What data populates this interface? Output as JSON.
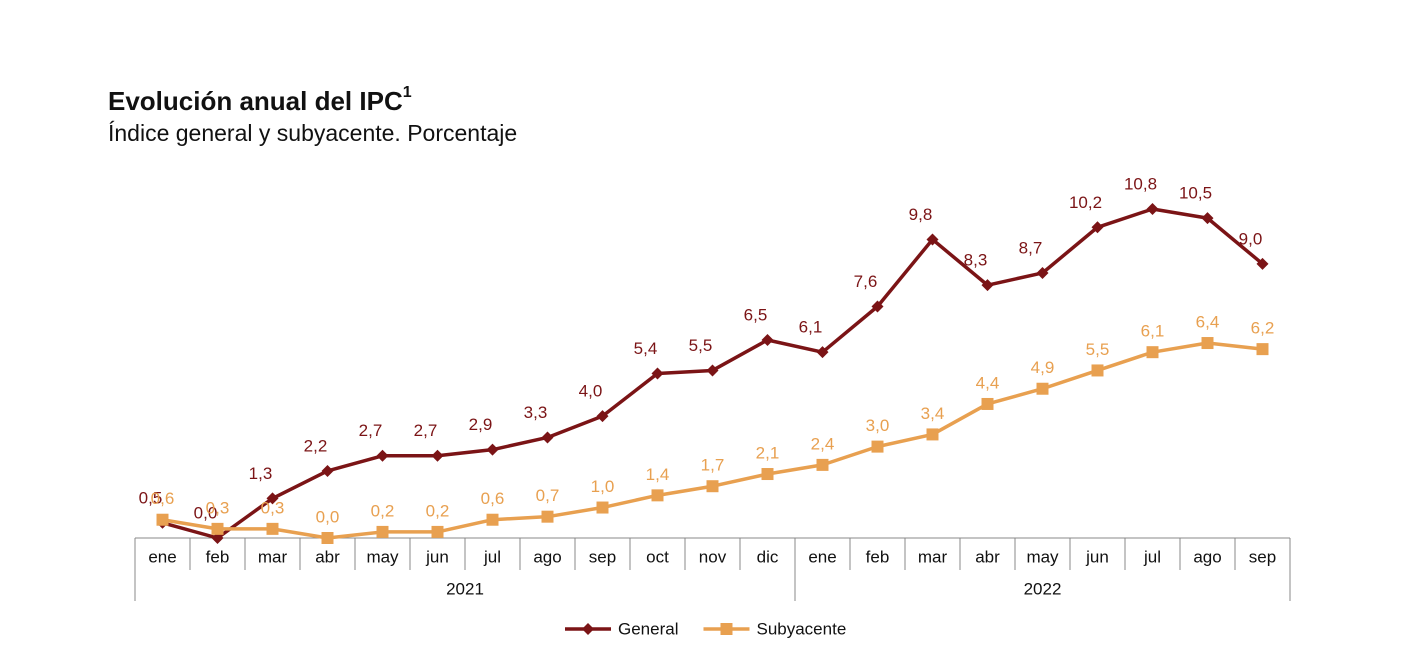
{
  "chart_data": {
    "type": "line",
    "title": "Evolución anual del IPC",
    "title_note": "1",
    "subtitle": "Índice general y subyacente. Porcentaje",
    "category_groups": [
      {
        "label": "2021",
        "categories": [
          "ene",
          "feb",
          "mar",
          "abr",
          "may",
          "jun",
          "jul",
          "ago",
          "sep",
          "oct",
          "nov",
          "dic"
        ]
      },
      {
        "label": "2022",
        "categories": [
          "ene",
          "feb",
          "mar",
          "abr",
          "may",
          "jun",
          "jul",
          "ago",
          "sep"
        ]
      }
    ],
    "series": [
      {
        "name": "General",
        "color": "#7b1416",
        "marker": "diamond",
        "values": [
          0.5,
          0.0,
          1.3,
          2.2,
          2.7,
          2.7,
          2.9,
          3.3,
          4.0,
          5.4,
          5.5,
          6.5,
          6.1,
          7.6,
          9.8,
          8.3,
          8.7,
          10.2,
          10.8,
          10.5,
          9.0
        ],
        "value_labels": [
          "0,5",
          "0,0",
          "1,3",
          "2,2",
          "2,7",
          "2,7",
          "2,9",
          "3,3",
          "4,0",
          "5,4",
          "5,5",
          "6,5",
          "6,1",
          "7,6",
          "9,8",
          "8,3",
          "8,7",
          "10,2",
          "10,8",
          "10,5",
          "9,0"
        ]
      },
      {
        "name": "Subyacente",
        "color": "#e8a050",
        "marker": "square",
        "values": [
          0.6,
          0.3,
          0.3,
          0.0,
          0.2,
          0.2,
          0.6,
          0.7,
          1.0,
          1.4,
          1.7,
          2.1,
          2.4,
          3.0,
          3.4,
          4.4,
          4.9,
          5.5,
          6.1,
          6.4,
          6.2
        ],
        "value_labels": [
          "0,6",
          "0,3",
          "0,3",
          "0,0",
          "0,2",
          "0,2",
          "0,6",
          "0,7",
          "1,0",
          "1,4",
          "1,7",
          "2,1",
          "2,4",
          "3,0",
          "3,4",
          "4,4",
          "4,9",
          "5,5",
          "6,1",
          "6,4",
          "6,2"
        ]
      }
    ],
    "legend": "bottom"
  }
}
